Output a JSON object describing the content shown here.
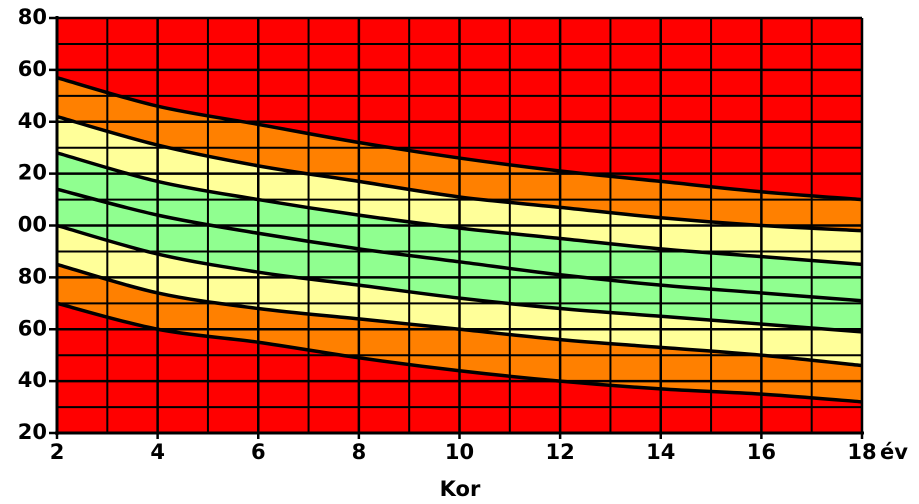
{
  "chart_data": {
    "type": "band",
    "xlabel": "Kor",
    "xunit": "év",
    "x": [
      2,
      4,
      6,
      8,
      10,
      12,
      14,
      16,
      18
    ],
    "xlim": [
      2,
      18
    ],
    "xticks": [
      2,
      4,
      6,
      8,
      10,
      12,
      14,
      16,
      18
    ],
    "minor_xticks": [
      3,
      5,
      7,
      9,
      11,
      13,
      15,
      17
    ],
    "ylim": [
      20,
      180
    ],
    "yticks": [
      20,
      40,
      60,
      80,
      {
        "value": 100,
        "label": "00"
      },
      {
        "value": 120,
        "label": "20"
      },
      {
        "value": 140,
        "label": "40"
      },
      {
        "value": 160,
        "label": "60"
      },
      {
        "value": 180,
        "label": "80"
      }
    ],
    "minor_yticks": [
      30,
      50,
      70,
      90,
      110,
      130,
      150,
      170
    ],
    "grid": true,
    "background_color": "#ff0000",
    "line_color": "#000000",
    "series": [
      {
        "color": "#ff8000",
        "values": [
          157,
          146,
          139,
          132,
          126,
          121,
          117,
          113,
          110
        ]
      },
      {
        "color": "#ffff99",
        "values": [
          142,
          131,
          123,
          117,
          111,
          107,
          103,
          100,
          98
        ]
      },
      {
        "color": "#90ff90",
        "values": [
          128,
          117,
          110,
          104,
          99,
          95,
          91,
          88,
          85
        ]
      },
      {
        "color": "#90ff90",
        "values": [
          114,
          104,
          97,
          91,
          86,
          81,
          77,
          74,
          71
        ]
      },
      {
        "color": "#ffff99",
        "values": [
          100,
          89,
          82,
          77,
          72,
          68,
          65,
          62,
          59
        ]
      },
      {
        "color": "#ff8000",
        "values": [
          85,
          74,
          68,
          64,
          60,
          56,
          53,
          50,
          46
        ]
      },
      {
        "color": "#ff0000",
        "values": [
          70,
          60,
          55,
          49,
          44,
          40,
          37,
          35,
          32
        ]
      }
    ]
  }
}
